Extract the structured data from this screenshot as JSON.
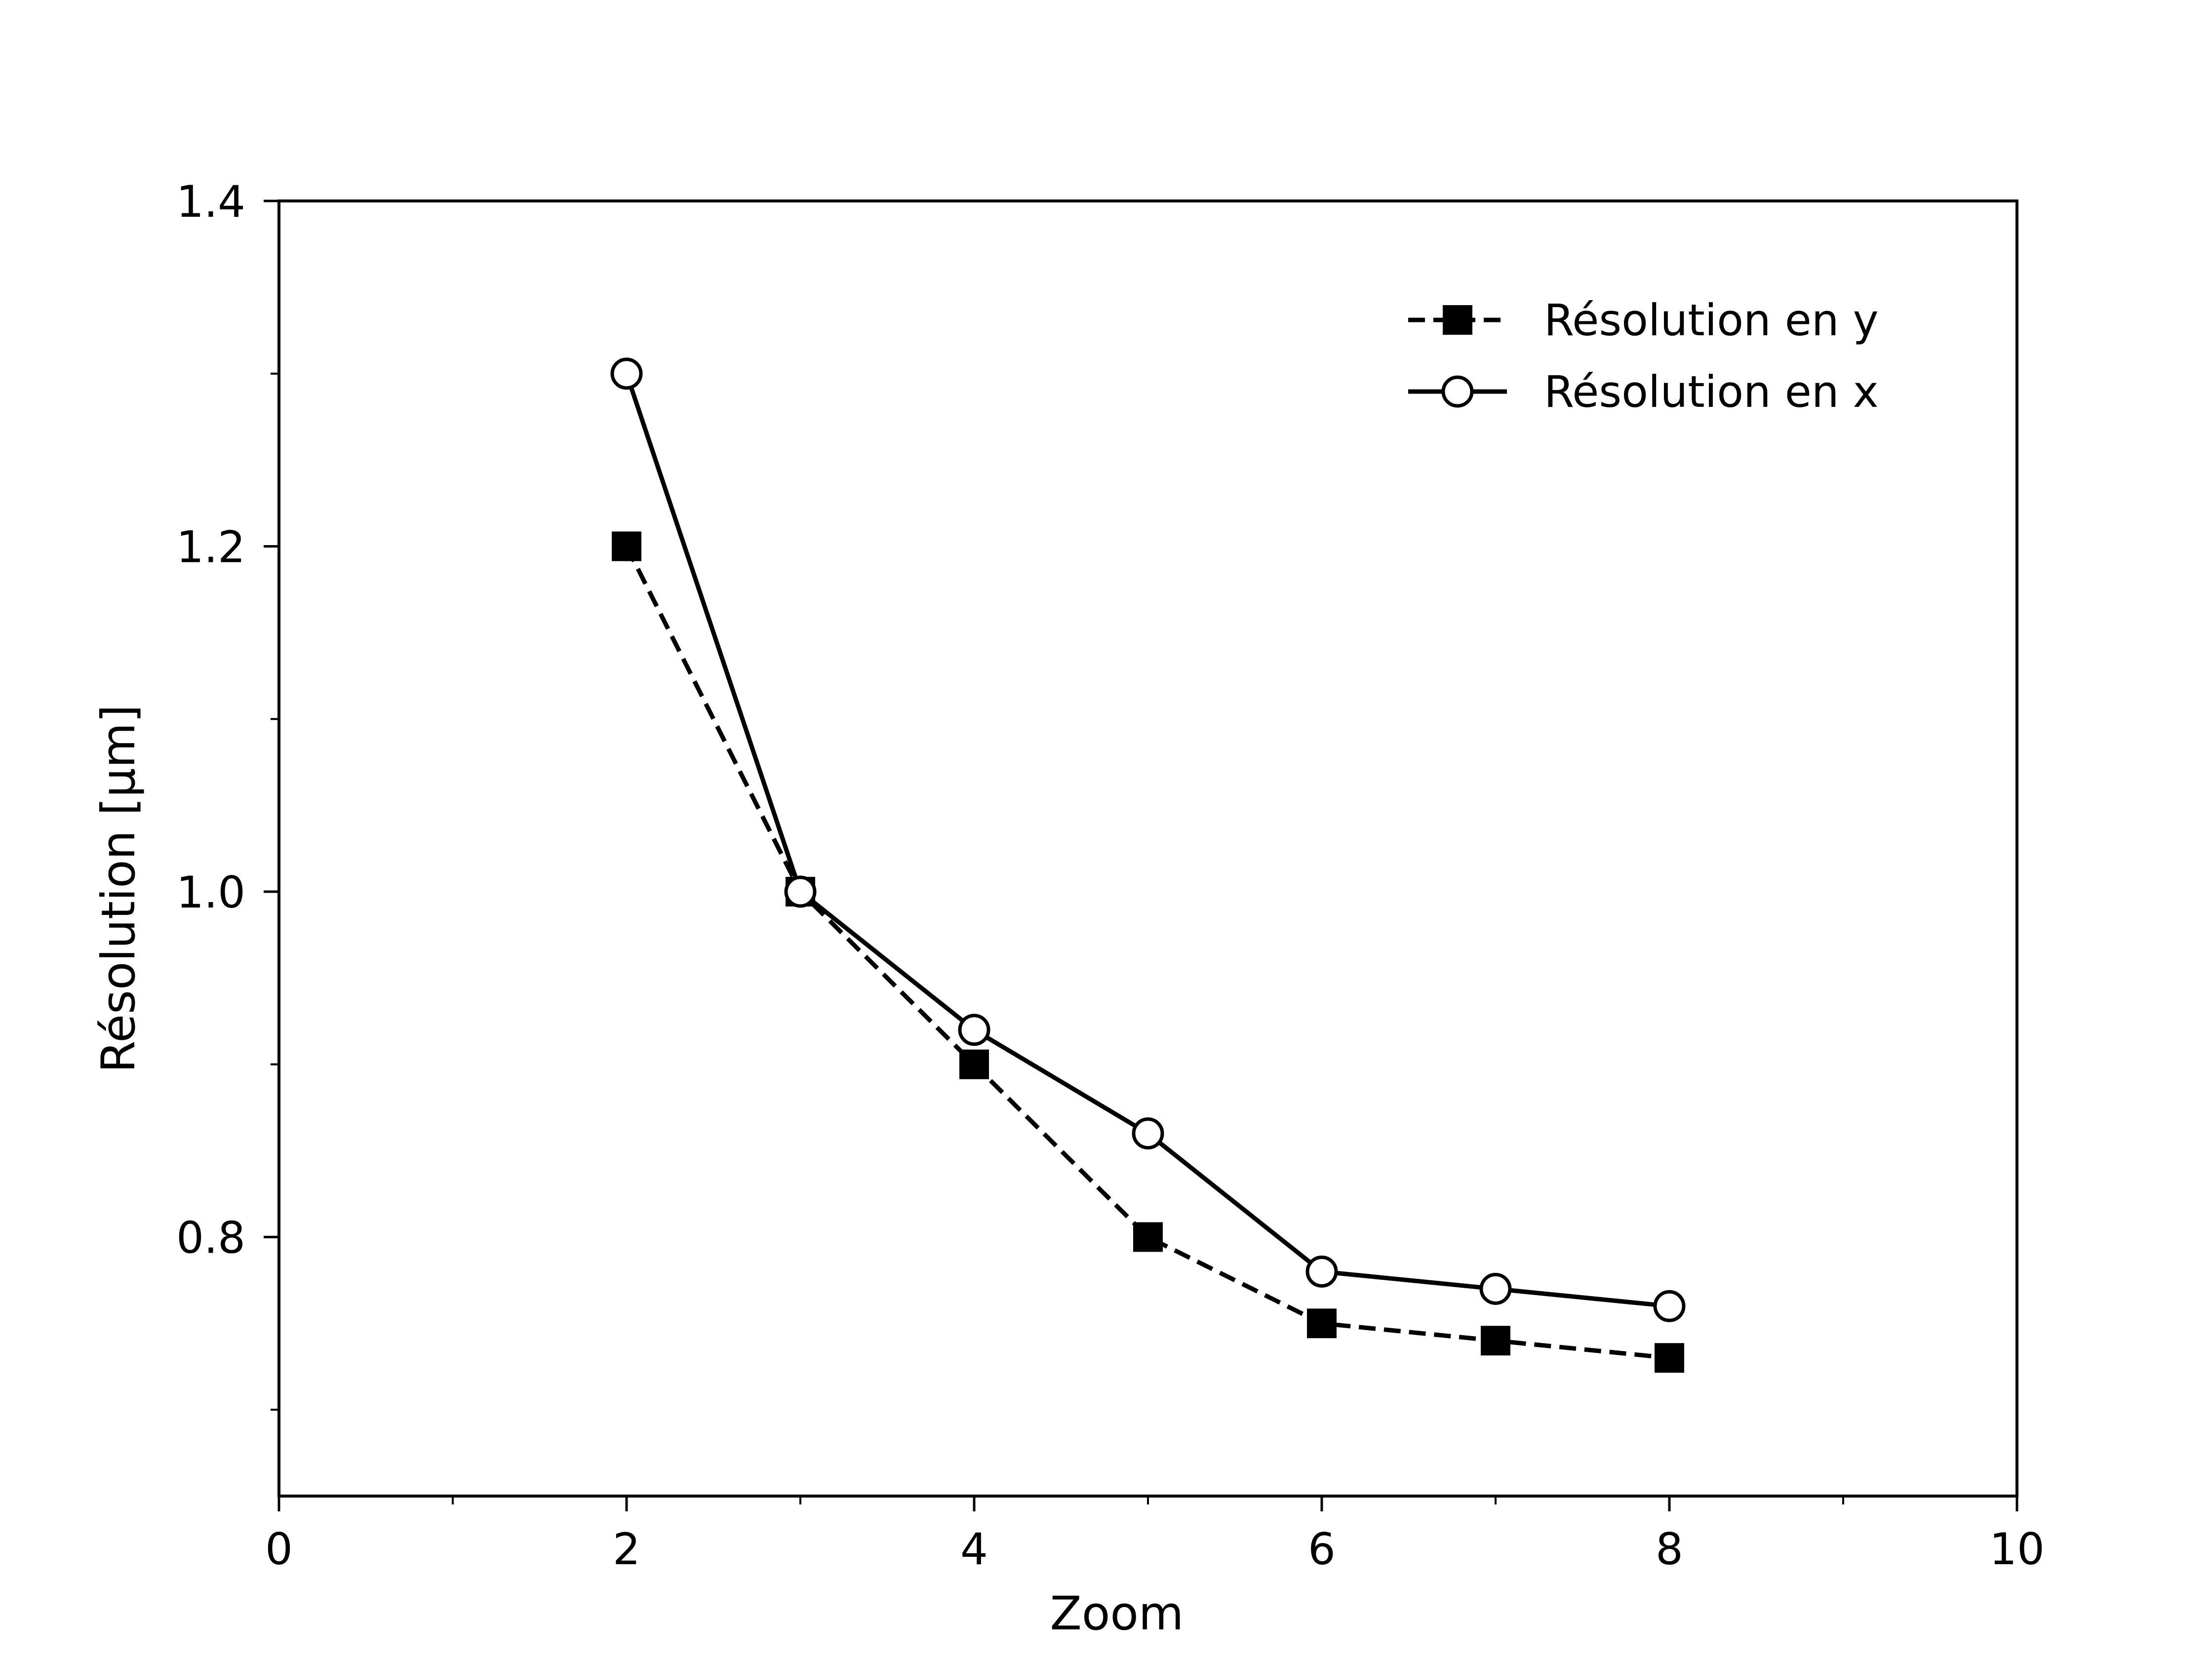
{
  "chart_data": {
    "type": "line",
    "title": "",
    "xlabel": "Zoom",
    "ylabel": "Résolution [μm]",
    "xlim": [
      0,
      10
    ],
    "ylim": [
      0.65,
      1.4
    ],
    "xticks": [
      0,
      2,
      4,
      6,
      8,
      10
    ],
    "xtick_labels": [
      "0",
      "2",
      "4",
      "6",
      "8",
      "10"
    ],
    "xminor_ticks": [
      1,
      3,
      5,
      7,
      9
    ],
    "yticks": [
      0.8,
      1.0,
      1.2,
      1.4
    ],
    "ytick_labels": [
      "0.8",
      "1.0",
      "1.2",
      "1.4"
    ],
    "yminor_ticks": [
      0.7,
      0.9,
      1.1,
      1.3
    ],
    "grid": false,
    "legend_position": "top-right",
    "series": [
      {
        "name": "Résolution en y",
        "line_style": "dashed",
        "marker": "filled-square",
        "color": "#000000",
        "x": [
          2,
          3,
          4,
          5,
          6,
          7,
          8
        ],
        "y": [
          1.2,
          1.0,
          0.9,
          0.8,
          0.75,
          0.74,
          0.73
        ]
      },
      {
        "name": "Résolution en x",
        "line_style": "solid",
        "marker": "open-circle",
        "color": "#000000",
        "x": [
          2,
          3,
          4,
          5,
          6,
          7,
          8
        ],
        "y": [
          1.3,
          1.0,
          0.92,
          0.86,
          0.78,
          0.77,
          0.76
        ]
      }
    ]
  }
}
